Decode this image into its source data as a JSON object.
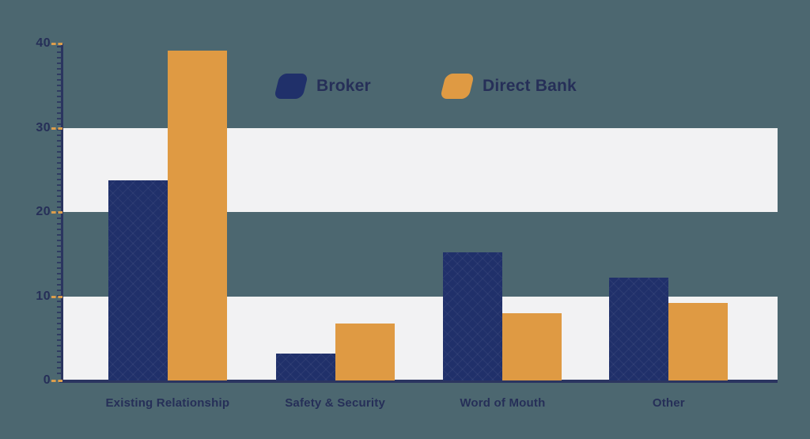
{
  "page": {
    "background_color": "#4c6770"
  },
  "chart_data": {
    "type": "bar",
    "title": "",
    "categories": [
      "Existing Relationship",
      "Safety & Security",
      "Word of Mouth",
      "Other"
    ],
    "series": [
      {
        "name": "Broker",
        "color": "#20306a",
        "values": [
          23.8,
          3.2,
          15.2,
          12.2
        ]
      },
      {
        "name": "Direct Bank",
        "color": "#df9a43",
        "values": [
          39.2,
          6.8,
          8.0,
          9.2
        ]
      }
    ],
    "xlabel": "",
    "ylabel": "",
    "ylim": [
      0,
      40
    ],
    "yticks": [
      40,
      30,
      20,
      10,
      0
    ],
    "grid": "horizontal white stripe bands spanning y 0-10 and y 20-30",
    "legend_position": "top-center",
    "colors": {
      "axis": "#2b3560",
      "tick_dash": "#dc9e4d",
      "band": "#f2f2f3",
      "text": "#262f58"
    }
  }
}
